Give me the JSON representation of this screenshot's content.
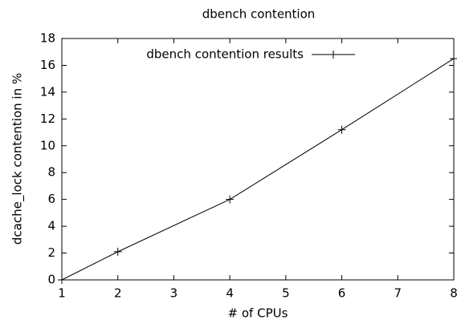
{
  "chart_data": {
    "type": "line",
    "title": "dbench contention",
    "xlabel": "# of CPUs",
    "ylabel": "dcache_lock contention in %",
    "x": [
      1,
      2,
      4,
      6,
      8
    ],
    "series": [
      {
        "name": "dbench contention results",
        "color": "#000000",
        "values": [
          0,
          2.1,
          6,
          11.2,
          16.5
        ]
      }
    ],
    "xlim": [
      1,
      8
    ],
    "xticks": [
      1,
      2,
      3,
      4,
      5,
      6,
      7,
      8
    ],
    "ylim": [
      0,
      18
    ],
    "yticks": [
      0,
      2,
      4,
      6,
      8,
      10,
      12,
      14,
      16,
      18
    ],
    "grid": false,
    "legend": "top-left"
  }
}
